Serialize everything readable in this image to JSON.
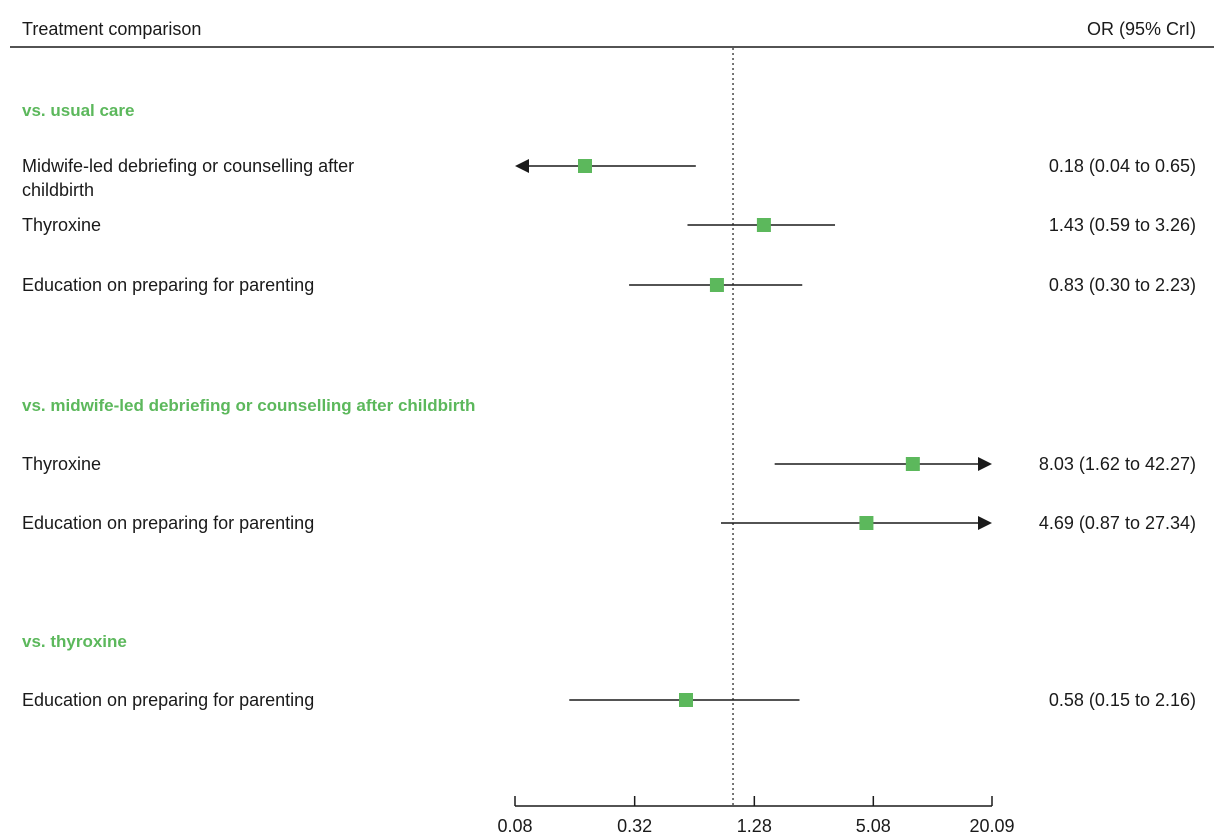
{
  "chart_data": {
    "type": "forest",
    "scale": "log",
    "header": {
      "left": "Treatment comparison",
      "right": "OR (95% CrI)"
    },
    "reference_line": 1,
    "xlim": [
      0.08,
      20.09
    ],
    "x_ticks": [
      "0.08",
      "0.32",
      "1.28",
      "5.08",
      "20.09"
    ],
    "groups": [
      {
        "title": "vs. usual care",
        "rows": [
          {
            "label_lines": [
              "Midwife-led debriefing or counselling after",
              "childbirth"
            ],
            "or": 0.18,
            "lower": 0.04,
            "upper": 0.65,
            "text": "0.18 (0.04 to 0.65)"
          },
          {
            "label_lines": [
              "Thyroxine"
            ],
            "or": 1.43,
            "lower": 0.59,
            "upper": 3.26,
            "text": "1.43 (0.59 to 3.26)"
          },
          {
            "label_lines": [
              "Education on preparing for parenting"
            ],
            "or": 0.83,
            "lower": 0.3,
            "upper": 2.23,
            "text": "0.83 (0.30 to 2.23)"
          }
        ]
      },
      {
        "title": "vs. midwife-led debriefing or counselling after childbirth",
        "rows": [
          {
            "label_lines": [
              "Thyroxine"
            ],
            "or": 8.03,
            "lower": 1.62,
            "upper": 42.27,
            "text": "8.03 (1.62 to 42.27)"
          },
          {
            "label_lines": [
              "Education on preparing for parenting"
            ],
            "or": 4.69,
            "lower": 0.87,
            "upper": 27.34,
            "text": "4.69 (0.87 to 27.34)"
          }
        ]
      },
      {
        "title": "vs. thyroxine",
        "rows": [
          {
            "label_lines": [
              "Education on preparing for parenting"
            ],
            "or": 0.58,
            "lower": 0.15,
            "upper": 2.16,
            "text": "0.58 (0.15 to 2.16)"
          }
        ]
      }
    ],
    "colors": {
      "point": "#5cb85c",
      "group_title": "#5cb85c",
      "line": "#1a1a1a"
    }
  }
}
